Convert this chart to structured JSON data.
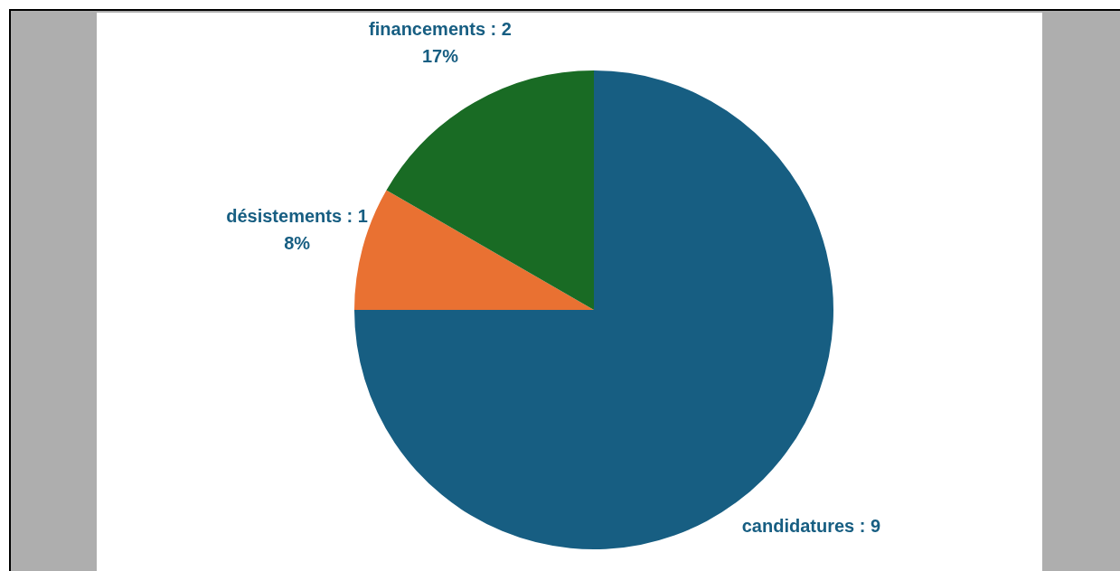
{
  "chart_data": {
    "type": "pie",
    "categories": [
      "candidatures",
      "désistements",
      "financements"
    ],
    "values": [
      9,
      1,
      2
    ],
    "value_labels": [
      "9",
      "1\n8%",
      "2\n17%"
    ],
    "colors": [
      "#175e82",
      "#e97132",
      "#196b24"
    ],
    "legend": false
  }
}
